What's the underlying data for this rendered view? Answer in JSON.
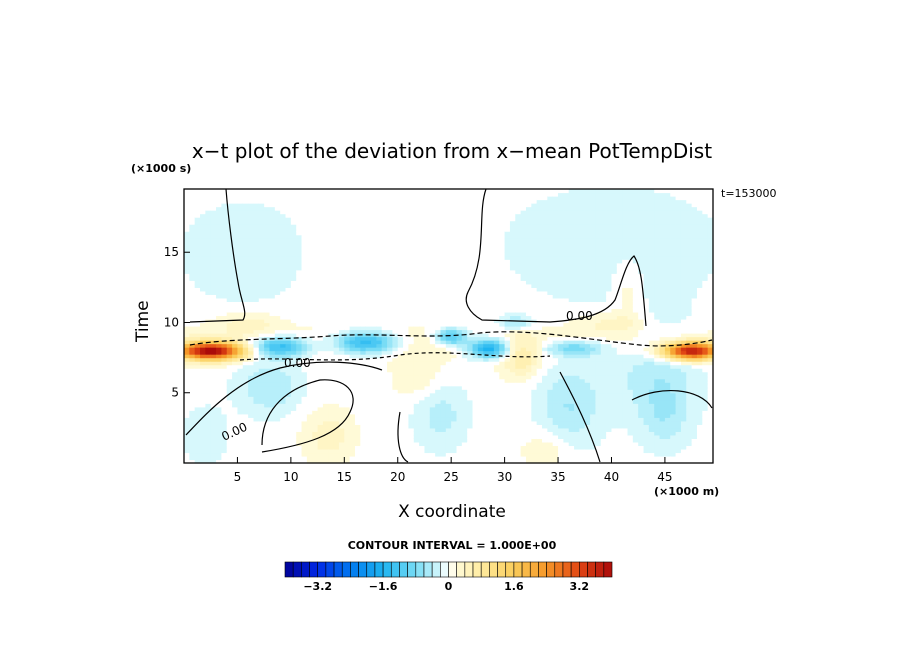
{
  "chart_data": {
    "type": "heatmap",
    "title": "x−t plot of the deviation from x−mean PotTempDist",
    "time_unit_label": "(×1000 s)",
    "timestamp_label": "t=153000",
    "xlabel": "X coordinate",
    "ylabel": "Time",
    "x_unit_label": "(×1000 m)",
    "xlim": [
      0,
      49.5
    ],
    "ylim": [
      0,
      19.5
    ],
    "x_ticks": [
      5,
      10,
      15,
      20,
      25,
      30,
      35,
      40,
      45
    ],
    "y_ticks": [
      5,
      10,
      15
    ],
    "contour_interval_label": "CONTOUR INTERVAL = 1.000E+00",
    "contour_labels": [
      "0.00",
      "0.00",
      "0.00"
    ],
    "colorbar": {
      "min": -4.0,
      "max": 4.0,
      "step": 0.2,
      "tick_values": [
        -3.2,
        -1.6,
        0,
        1.6,
        3.2
      ],
      "tick_labels": [
        "−3.2",
        "−1.6",
        "0",
        "1.6",
        "3.2"
      ]
    },
    "field_features": [
      {
        "type": "band",
        "t": 8.5,
        "value": 0.3
      },
      {
        "type": "blob",
        "x": 2.5,
        "t": 8.0,
        "sx": 3.0,
        "st": 0.6,
        "value": 4.0
      },
      {
        "type": "blob",
        "x": 47.5,
        "t": 8.0,
        "sx": 2.5,
        "st": 0.6,
        "value": 3.8
      },
      {
        "type": "blob",
        "x": 9.0,
        "t": 8.3,
        "sx": 2.8,
        "st": 0.7,
        "value": -1.6
      },
      {
        "type": "blob",
        "x": 17.0,
        "t": 8.6,
        "sx": 3.0,
        "st": 0.8,
        "value": -1.7
      },
      {
        "type": "blob",
        "x": 25.0,
        "t": 9.0,
        "sx": 1.5,
        "st": 0.6,
        "value": -1.4
      },
      {
        "type": "blob",
        "x": 28.5,
        "t": 8.2,
        "sx": 2.0,
        "st": 0.7,
        "value": -1.9
      },
      {
        "type": "blob",
        "x": 36.5,
        "t": 8.2,
        "sx": 3.0,
        "st": 0.6,
        "value": -1.0
      },
      {
        "type": "blob",
        "x": 31.0,
        "t": 10.0,
        "sx": 1.5,
        "st": 0.5,
        "value": -0.6
      },
      {
        "type": "blob",
        "x": 31.5,
        "t": 7.5,
        "sx": 1.8,
        "st": 1.5,
        "value": 0.6
      },
      {
        "type": "blob",
        "x": 6.0,
        "t": 10.0,
        "sx": 3.0,
        "st": 0.8,
        "value": 0.4
      },
      {
        "type": "blob",
        "x": 40.0,
        "t": 10.0,
        "sx": 3.5,
        "st": 0.8,
        "value": 0.4
      },
      {
        "type": "blob",
        "x": 44.0,
        "t": 7.0,
        "sx": 4.5,
        "st": 3.5,
        "value": -0.4
      },
      {
        "type": "blob",
        "x": 36.0,
        "t": 4.0,
        "sx": 3.0,
        "st": 3.0,
        "value": -0.5
      },
      {
        "type": "blob",
        "x": 45.0,
        "t": 3.5,
        "sx": 2.5,
        "st": 2.5,
        "value": -0.4
      },
      {
        "type": "blob",
        "x": 8.0,
        "t": 5.5,
        "sx": 3.0,
        "st": 2.0,
        "value": -0.5
      },
      {
        "type": "blob",
        "x": 24.0,
        "t": 3.5,
        "sx": 2.5,
        "st": 2.5,
        "value": -0.4
      },
      {
        "type": "blob",
        "x": 13.5,
        "t": 2.0,
        "sx": 2.5,
        "st": 2.0,
        "value": 0.4
      },
      {
        "type": "blob",
        "x": 22.0,
        "t": 6.0,
        "sx": 2.5,
        "st": 1.5,
        "value": 0.3
      },
      {
        "type": "blob",
        "x": 34.0,
        "t": 1.0,
        "sx": 2.5,
        "st": 1.5,
        "value": 0.3
      },
      {
        "type": "blob",
        "x": 2.0,
        "t": 2.0,
        "sx": 2.0,
        "st": 2.0,
        "value": -0.3
      },
      {
        "type": "blob",
        "x": 6.0,
        "t": 15.0,
        "sx": 6.0,
        "st": 3.5,
        "value": -0.3
      },
      {
        "type": "blob",
        "x": 40.0,
        "t": 15.5,
        "sx": 10.0,
        "st": 4.0,
        "value": -0.3
      },
      {
        "type": "blob",
        "x": 18.0,
        "t": 15.0,
        "sx": 8.0,
        "st": 5.0,
        "value": 0.1
      },
      {
        "type": "blob",
        "x": 41.5,
        "t": 12.5,
        "sx": 1.5,
        "st": 3.0,
        "value": 0.3
      }
    ]
  }
}
